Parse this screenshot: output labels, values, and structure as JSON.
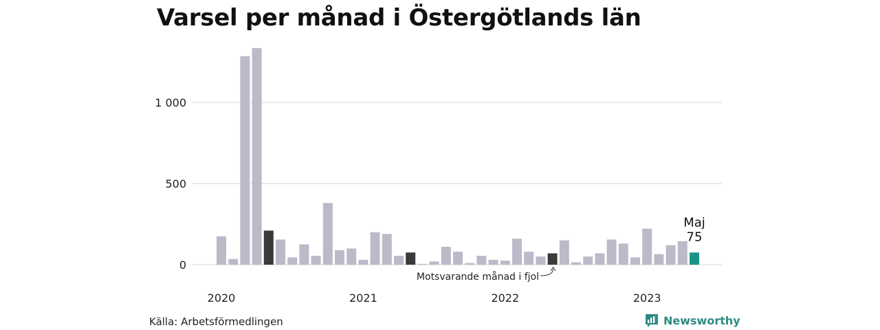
{
  "title": "Varsel per månad i Östergötlands län",
  "source": "Källa: Arbetsförmedlingen",
  "brand": {
    "name": "Newsworthy",
    "icon": "newsworthy-logo-icon"
  },
  "colors": {
    "bar": "#bcbac9",
    "highlight_prev": "#3a3a3a",
    "highlight_current": "#1a9484",
    "grid": "#dddddd",
    "brand": "#2e8b83"
  },
  "chart_data": {
    "type": "bar",
    "title": "Varsel per månad i Östergötlands län",
    "xlabel": "",
    "ylabel": "",
    "ylim": [
      0,
      1340
    ],
    "yticks": [
      0,
      500,
      1000
    ],
    "ytick_labels": [
      "0",
      "500",
      "1 000"
    ],
    "x_year_labels": [
      {
        "label": "2020",
        "index": 0
      },
      {
        "label": "2021",
        "index": 12
      },
      {
        "label": "2022",
        "index": 24
      },
      {
        "label": "2023",
        "index": 36
      }
    ],
    "categories": [
      "2020-01",
      "2020-02",
      "2020-03",
      "2020-04",
      "2020-05",
      "2020-06",
      "2020-07",
      "2020-08",
      "2020-09",
      "2020-10",
      "2020-11",
      "2020-12",
      "2021-01",
      "2021-02",
      "2021-03",
      "2021-04",
      "2021-05",
      "2021-06",
      "2021-07",
      "2021-08",
      "2021-09",
      "2021-10",
      "2021-11",
      "2021-12",
      "2022-01",
      "2022-02",
      "2022-03",
      "2022-04",
      "2022-05",
      "2022-06",
      "2022-07",
      "2022-08",
      "2022-09",
      "2022-10",
      "2022-11",
      "2022-12",
      "2023-01",
      "2023-02",
      "2023-03",
      "2023-04",
      "2023-05"
    ],
    "values": [
      175,
      35,
      1285,
      1335,
      210,
      155,
      45,
      125,
      55,
      380,
      90,
      100,
      30,
      200,
      190,
      55,
      75,
      5,
      20,
      110,
      80,
      10,
      55,
      30,
      25,
      160,
      80,
      50,
      70,
      150,
      15,
      50,
      70,
      155,
      130,
      45,
      222,
      65,
      120,
      145,
      75
    ],
    "highlight_prev_indices": [
      4,
      16,
      28
    ],
    "highlight_current_index": 40,
    "annotations": {
      "current_month": "Maj",
      "current_value": "75",
      "prev_year": "Motsvarande månad i fjol"
    },
    "grid": true
  }
}
